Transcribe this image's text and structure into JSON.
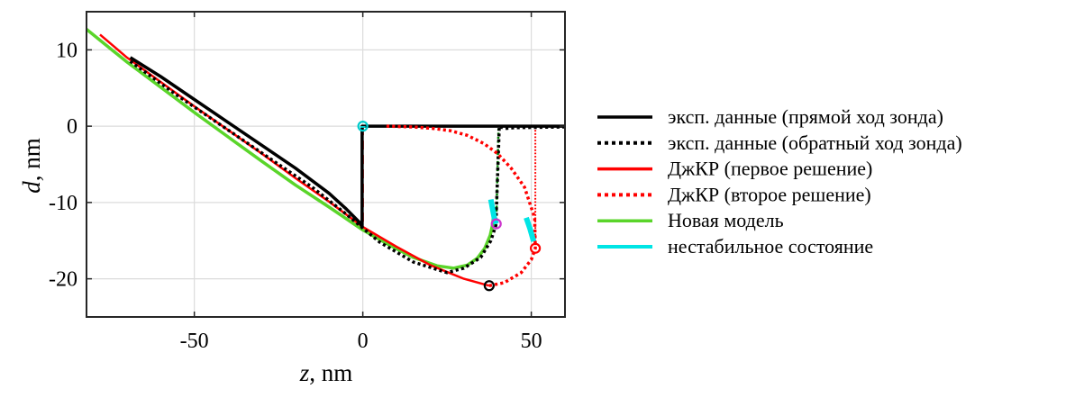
{
  "chart_data": {
    "type": "line",
    "xlabel_var": "z",
    "xlabel_unit": ", nm",
    "ylabel_var": "d",
    "ylabel_unit": ", nm",
    "xlim": [
      -82,
      60
    ],
    "ylim": [
      -25,
      15
    ],
    "xticks": [
      -50,
      0,
      50
    ],
    "yticks": [
      10,
      0,
      -10,
      -20
    ],
    "xtick_labels": [
      "-50",
      "0",
      "50"
    ],
    "ytick_labels": [
      "10",
      "0",
      "-10",
      "-20"
    ],
    "grid": true,
    "legend_position": "right-outside",
    "series": [
      {
        "name": "эксп. данные (прямой ход зонда)",
        "color": "#000000",
        "style": "solid",
        "width": 3.5,
        "points": [
          [
            -69,
            9
          ],
          [
            -60,
            6.5
          ],
          [
            -50,
            3.5
          ],
          [
            -40,
            0.5
          ],
          [
            -30,
            -2.5
          ],
          [
            -20,
            -5.5
          ],
          [
            -10,
            -8.8
          ],
          [
            -5,
            -10.8
          ],
          [
            -1,
            -12.6
          ],
          [
            -0.2,
            -13.2
          ],
          [
            -0.2,
            0
          ],
          [
            60,
            0
          ]
        ]
      },
      {
        "name": "эксп. данные (обратный ход зонда)",
        "color": "#000000",
        "style": "dotted",
        "width": 3.5,
        "points": [
          [
            -69,
            8.5
          ],
          [
            -55,
            4
          ],
          [
            -45,
            1
          ],
          [
            -35,
            -2
          ],
          [
            -25,
            -5
          ],
          [
            -15,
            -8
          ],
          [
            -5,
            -11.5
          ],
          [
            5,
            -15.2
          ],
          [
            15,
            -17.8
          ],
          [
            25,
            -19.2
          ],
          [
            30,
            -18.6
          ],
          [
            35,
            -17.2
          ],
          [
            38,
            -15
          ],
          [
            39.5,
            -13
          ],
          [
            40.5,
            0
          ],
          [
            42,
            -0.3
          ],
          [
            45,
            -0.2
          ],
          [
            60,
            -0.1
          ]
        ]
      },
      {
        "name": "ДжКР (первое решение)",
        "color": "#ff0000",
        "style": "solid",
        "width": 2.5,
        "points": [
          [
            -78,
            12
          ],
          [
            -70,
            9
          ],
          [
            -60,
            5.8
          ],
          [
            -50,
            2.6
          ],
          [
            -40,
            -0.5
          ],
          [
            -30,
            -3.6
          ],
          [
            -20,
            -6.8
          ],
          [
            -10,
            -9.9
          ],
          [
            0,
            -13.2
          ],
          [
            10,
            -15.8
          ],
          [
            20,
            -18.2
          ],
          [
            30,
            -20
          ],
          [
            37.5,
            -20.9
          ]
        ]
      },
      {
        "name": "ДжКР (второе решение)",
        "color": "#ff0000",
        "style": "dotted",
        "width": 3.5,
        "points": [
          [
            37.5,
            -20.9
          ],
          [
            42,
            -20.5
          ],
          [
            47,
            -19.2
          ],
          [
            50,
            -17.5
          ],
          [
            51.2,
            -16
          ],
          [
            51,
            -12
          ],
          [
            48,
            -8
          ],
          [
            44,
            -5.5
          ],
          [
            40,
            -3.6
          ],
          [
            36,
            -2.3
          ],
          [
            31,
            -1.2
          ],
          [
            26,
            -0.6
          ],
          [
            21,
            -0.3
          ],
          [
            15,
            -0.1
          ],
          [
            7,
            0
          ]
        ]
      },
      {
        "name": "Новая модель",
        "color": "#5ad52a",
        "style": "solid",
        "width": 3.5,
        "points": [
          [
            -82,
            12.7
          ],
          [
            -70,
            8.4
          ],
          [
            -60,
            5.1
          ],
          [
            -50,
            1.8
          ],
          [
            -40,
            -1.4
          ],
          [
            -30,
            -4.6
          ],
          [
            -20,
            -7.7
          ],
          [
            -10,
            -10.6
          ],
          [
            0,
            -13.6
          ],
          [
            8,
            -15.6
          ],
          [
            15,
            -17.2
          ],
          [
            22,
            -18.3
          ],
          [
            27,
            -18.6
          ],
          [
            31,
            -18.2
          ],
          [
            34,
            -17.3
          ],
          [
            36.2,
            -16
          ],
          [
            37.8,
            -14.3
          ],
          [
            38.6,
            -12.7
          ],
          [
            38.8,
            -11.2
          ],
          [
            38.2,
            -9.8
          ]
        ]
      },
      {
        "name": "нестабильное состояние",
        "color": "#00e5e5",
        "style": "solid",
        "width": 6,
        "segments": [
          [
            [
              38.0,
              -9.6
            ],
            [
              38.5,
              -10.8
            ],
            [
              39,
              -12
            ],
            [
              39.6,
              -12.8
            ]
          ],
          [
            [
              48.5,
              -12
            ],
            [
              49.6,
              -13.4
            ],
            [
              50.7,
              -15.1
            ]
          ],
          [
            [
              0,
              0
            ],
            [
              0,
              -0.2
            ]
          ]
        ]
      }
    ],
    "extra_lines": [
      {
        "color": "#ff0000",
        "style": "dashed",
        "width": 2.5,
        "points": [
          [
            0,
            0
          ],
          [
            0,
            -13.2
          ]
        ]
      },
      {
        "color": "#000000",
        "style": "solid",
        "width": 3,
        "points": [
          [
            -0.2,
            0
          ],
          [
            -0.2,
            -13.2
          ]
        ]
      },
      {
        "color": "#008000",
        "style": "dotted",
        "width": 2.5,
        "points": [
          [
            39.6,
            -12.8
          ],
          [
            40.3,
            0
          ]
        ]
      },
      {
        "color": "#ff0000",
        "style": "dotted",
        "width": 2,
        "points": [
          [
            51.2,
            -16
          ],
          [
            51.2,
            0
          ]
        ]
      }
    ],
    "markers": [
      {
        "x": 37.5,
        "y": -20.9,
        "color": "#000000"
      },
      {
        "x": 51.2,
        "y": -16,
        "color": "#ff0000"
      },
      {
        "x": 39.6,
        "y": -12.8,
        "color": "#cc33cc"
      },
      {
        "x": 0,
        "y": 0,
        "color": "#00cccc"
      }
    ]
  }
}
